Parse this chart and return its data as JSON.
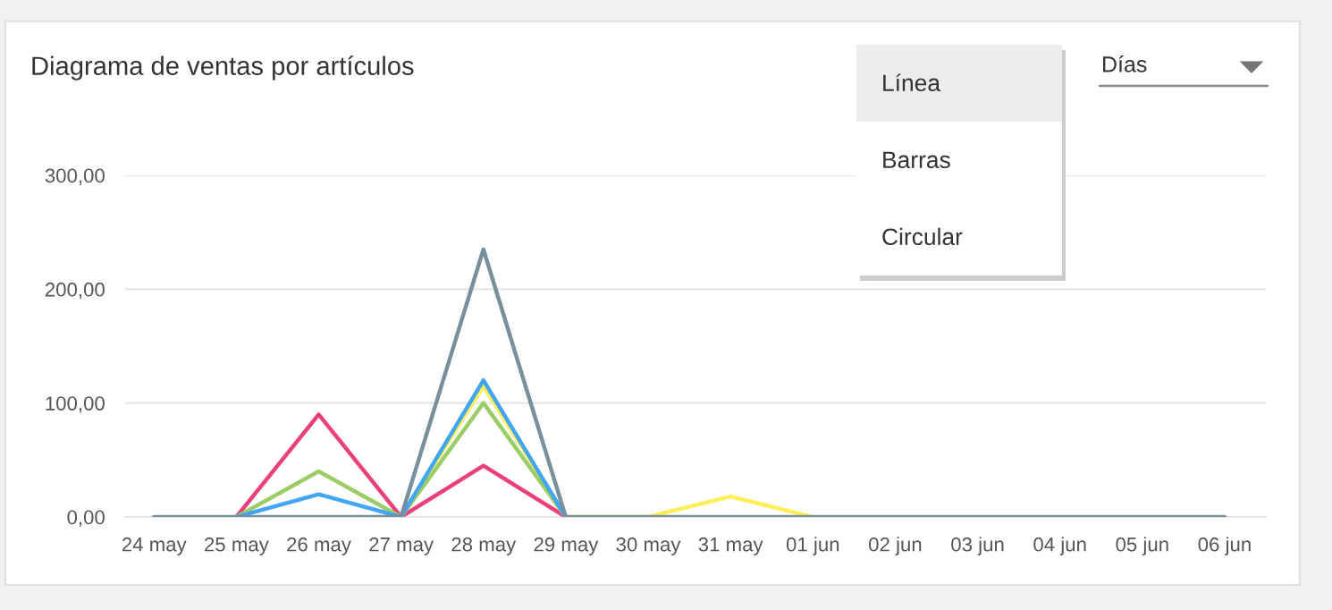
{
  "chart_data": {
    "type": "line",
    "title": "Diagrama de ventas por artículos",
    "categories": [
      "24 may",
      "25 may",
      "26 may",
      "27 may",
      "28 may",
      "29 may",
      "30 may",
      "31 may",
      "01 jun",
      "02 jun",
      "03 jun",
      "04 jun",
      "05 jun",
      "06 jun"
    ],
    "series": [
      {
        "color": "#ffee58",
        "values": [
          null,
          null,
          null,
          0,
          115,
          0,
          0,
          18,
          0,
          null,
          null,
          null,
          null,
          null
        ]
      },
      {
        "color": "#ec407a",
        "values": [
          null,
          0,
          90,
          0,
          45,
          0,
          null,
          null,
          null,
          null,
          null,
          null,
          null,
          null
        ]
      },
      {
        "color": "#9ccc65",
        "values": [
          null,
          0,
          40,
          0,
          100,
          0,
          null,
          null,
          null,
          null,
          null,
          null,
          null,
          null
        ]
      },
      {
        "color": "#42a5f5",
        "values": [
          null,
          0,
          20,
          0,
          120,
          0,
          null,
          null,
          null,
          null,
          null,
          null,
          null,
          null
        ]
      },
      {
        "color": "#78909c",
        "values": [
          0,
          0,
          0,
          0,
          235,
          0,
          0,
          0,
          0,
          0,
          0,
          0,
          0,
          0
        ]
      }
    ],
    "ylim": [
      0,
      300
    ],
    "yticks": [
      {
        "value": 0,
        "label": "0,00"
      },
      {
        "value": 100,
        "label": "100,00"
      },
      {
        "value": 200,
        "label": "200,00"
      },
      {
        "value": 300,
        "label": "300,00"
      }
    ],
    "grid": "y",
    "marker": "none",
    "line_style": "solid",
    "annotations": [
      "Días",
      "Línea",
      "Barras",
      "Circular"
    ]
  }
}
